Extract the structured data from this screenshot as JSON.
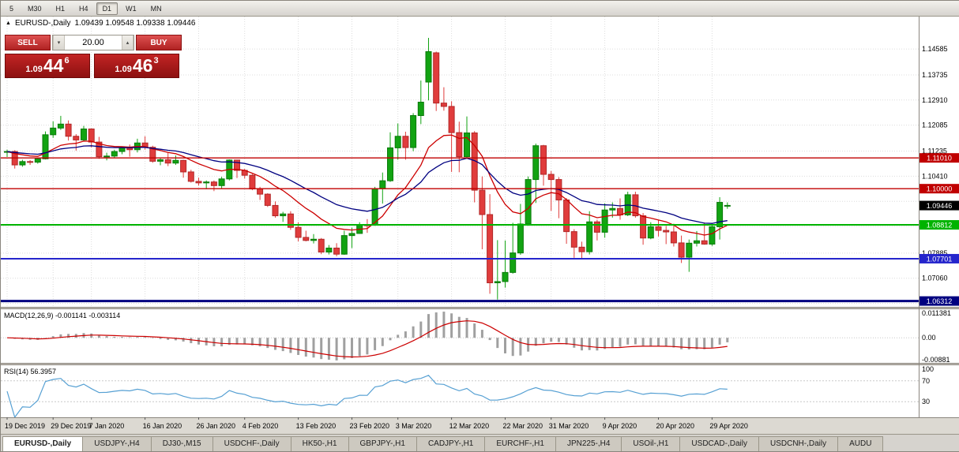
{
  "toolbar": {
    "timeframes": [
      "5",
      "M30",
      "H1",
      "H4",
      "D1",
      "W1",
      "MN"
    ],
    "active_timeframe": "D1"
  },
  "icons": {
    "symbol_marker": "▲",
    "volume_up": "▴",
    "volume_down": "▾"
  },
  "header": {
    "symbol": "EURUSD-,Daily",
    "ohlc": "1.09439 1.09548 1.09338 1.09446"
  },
  "trade_widget": {
    "sell_label": "SELL",
    "buy_label": "BUY",
    "volume": "20.00",
    "sell_price": {
      "prefix": "1.09",
      "big": "44",
      "sup": "6"
    },
    "buy_price": {
      "prefix": "1.09",
      "big": "46",
      "sup": "3"
    }
  },
  "indicators": {
    "macd": {
      "title": "MACD(12,26,9) -0.001141 -0.003114",
      "axis_labels": [
        "0.011381",
        "0.00",
        "-0.00881"
      ],
      "params": {
        "fast": 12,
        "slow": 26,
        "signal": 9
      }
    },
    "rsi": {
      "title": "RSI(14) 56.3957",
      "axis_labels": [
        "100",
        "70",
        "30"
      ],
      "levels": [
        70,
        30
      ],
      "period": 14
    }
  },
  "chart_data": {
    "type": "candlestick",
    "symbol": "EURUSD",
    "timeframe": "Daily",
    "price_range": [
      1.0612,
      1.1565
    ],
    "colors": {
      "up": "#12a312",
      "down": "#e03c3c",
      "up_border": "#0b7a0b",
      "down_border": "#b02828",
      "macd_bar": "#a0a0a0",
      "macd_signal": "#cc0000",
      "rsi_line": "#56a0d3",
      "grid": "#dcdcdc"
    },
    "gridlines": [
      {
        "value": 1.14585,
        "label": "1.14585"
      },
      {
        "value": 1.13735,
        "label": "1.13735"
      },
      {
        "value": 1.1291,
        "label": "1.12910"
      },
      {
        "value": 1.12085,
        "label": "1.12085"
      },
      {
        "value": 1.11235,
        "label": "1.11235"
      },
      {
        "value": 1.1041,
        "label": "1.10410"
      },
      {
        "value": 1.09585,
        "label": ""
      },
      {
        "value": 1.0876,
        "label": ""
      },
      {
        "value": 1.07885,
        "label": "1.07885"
      },
      {
        "value": 1.0706,
        "label": "1.07060"
      },
      {
        "value": 1.06235,
        "label": ""
      }
    ],
    "levels": [
      {
        "price": 1.1101,
        "label": "1.11010",
        "color": "#c00000",
        "width": 1.4
      },
      {
        "price": 1.1,
        "label": "1.10000",
        "color": "#c00000",
        "width": 1.4
      },
      {
        "price": 1.08812,
        "label": "1.08812",
        "color": "#00b300",
        "width": 2
      },
      {
        "price": 1.07701,
        "label": "1.07701",
        "color": "#2525cc",
        "width": 2
      },
      {
        "price": 1.06312,
        "label": "1.06312",
        "color": "#000080",
        "width": 3
      }
    ],
    "current_price": {
      "value": 1.09446,
      "label": "1.09446",
      "color": "#000000"
    },
    "moving_averages": [
      {
        "period": 12,
        "color": "#cc0000"
      },
      {
        "period": 26,
        "color": "#000080"
      }
    ],
    "date_labels": [
      {
        "i": 0,
        "label": "19 Dec 2019"
      },
      {
        "i": 6,
        "label": "29 Dec 2019"
      },
      {
        "i": 11,
        "label": "7 Jan 2020"
      },
      {
        "i": 18,
        "label": "16 Jan 2020"
      },
      {
        "i": 25,
        "label": "26 Jan 2020"
      },
      {
        "i": 31,
        "label": "4 Feb 2020"
      },
      {
        "i": 38,
        "label": "13 Feb 2020"
      },
      {
        "i": 45,
        "label": "23 Feb 2020"
      },
      {
        "i": 51,
        "label": "3 Mar 2020"
      },
      {
        "i": 58,
        "label": "12 Mar 2020"
      },
      {
        "i": 65,
        "label": "22 Mar 2020"
      },
      {
        "i": 71,
        "label": "31 Mar 2020"
      },
      {
        "i": 78,
        "label": "9 Apr 2020"
      },
      {
        "i": 85,
        "label": "20 Apr 2020"
      },
      {
        "i": 92,
        "label": "29 Apr 2020"
      }
    ],
    "candles": [
      [
        1.112,
        1.1128,
        1.1104,
        1.1122
      ],
      [
        1.1122,
        1.1126,
        1.1066,
        1.1078
      ],
      [
        1.1078,
        1.1095,
        1.1072,
        1.1089
      ],
      [
        1.1089,
        1.1094,
        1.1078,
        1.1087
      ],
      [
        1.1087,
        1.11,
        1.1082,
        1.1098
      ],
      [
        1.1098,
        1.1188,
        1.1096,
        1.1177
      ],
      [
        1.1177,
        1.1221,
        1.1167,
        1.1199
      ],
      [
        1.1199,
        1.1239,
        1.1193,
        1.1212
      ],
      [
        1.1212,
        1.1224,
        1.1158,
        1.1172
      ],
      [
        1.1172,
        1.1179,
        1.1125,
        1.116
      ],
      [
        1.116,
        1.1206,
        1.1155,
        1.1196
      ],
      [
        1.1196,
        1.1198,
        1.1135,
        1.1153
      ],
      [
        1.1153,
        1.117,
        1.1098,
        1.1105
      ],
      [
        1.1105,
        1.1118,
        1.1093,
        1.1107
      ],
      [
        1.1107,
        1.1128,
        1.11,
        1.1122
      ],
      [
        1.1122,
        1.1139,
        1.1113,
        1.1134
      ],
      [
        1.1134,
        1.1145,
        1.1105,
        1.1128
      ],
      [
        1.1128,
        1.1164,
        1.1119,
        1.115
      ],
      [
        1.115,
        1.1172,
        1.1128,
        1.1136
      ],
      [
        1.1136,
        1.1141,
        1.1085,
        1.109
      ],
      [
        1.109,
        1.1102,
        1.1077,
        1.1095
      ],
      [
        1.1095,
        1.1118,
        1.1074,
        1.1084
      ],
      [
        1.1084,
        1.1109,
        1.1078,
        1.1093
      ],
      [
        1.1093,
        1.1095,
        1.1036,
        1.1055
      ],
      [
        1.1055,
        1.1062,
        1.102,
        1.1024
      ],
      [
        1.1024,
        1.1036,
        1.101,
        1.1019
      ],
      [
        1.1019,
        1.1027,
        1.0998,
        1.1022
      ],
      [
        1.1022,
        1.1027,
        1.0992,
        1.101
      ],
      [
        1.101,
        1.1039,
        1.1001,
        1.1032
      ],
      [
        1.1032,
        1.1096,
        1.1027,
        1.1094
      ],
      [
        1.1094,
        1.1095,
        1.1035,
        1.106
      ],
      [
        1.106,
        1.1065,
        1.1033,
        1.1044
      ],
      [
        1.1044,
        1.1048,
        1.0995,
        1.0999
      ],
      [
        1.0999,
        1.1006,
        1.0963,
        1.0982
      ],
      [
        1.0982,
        1.0985,
        1.094,
        1.0945
      ],
      [
        1.0945,
        1.0958,
        1.0905,
        1.0911
      ],
      [
        1.0911,
        1.0924,
        1.0891,
        1.0917
      ],
      [
        1.0917,
        1.0926,
        1.0865,
        1.0873
      ],
      [
        1.0873,
        1.089,
        1.0827,
        1.084
      ],
      [
        1.084,
        1.0862,
        1.0827,
        1.083
      ],
      [
        1.083,
        1.0851,
        1.082,
        1.0834
      ],
      [
        1.0834,
        1.0838,
        1.0785,
        1.0792
      ],
      [
        1.0792,
        1.0815,
        1.0784,
        1.0805
      ],
      [
        1.0805,
        1.0821,
        1.0778,
        1.0785
      ],
      [
        1.0785,
        1.0862,
        1.0783,
        1.0846
      ],
      [
        1.0846,
        1.0872,
        1.0805,
        1.0853
      ],
      [
        1.0853,
        1.089,
        1.0852,
        1.0881
      ],
      [
        1.0881,
        1.09,
        1.0855,
        1.088
      ],
      [
        1.088,
        1.1006,
        1.0878,
        1.1
      ],
      [
        1.1,
        1.1053,
        1.0951,
        1.1026
      ],
      [
        1.1026,
        1.1185,
        1.1022,
        1.1134
      ],
      [
        1.1134,
        1.1214,
        1.1095,
        1.1172
      ],
      [
        1.1172,
        1.1187,
        1.1095,
        1.1135
      ],
      [
        1.1135,
        1.1248,
        1.1123,
        1.124
      ],
      [
        1.124,
        1.1355,
        1.1212,
        1.1284
      ],
      [
        1.135,
        1.1495,
        1.129,
        1.145
      ],
      [
        1.1446,
        1.145,
        1.1255,
        1.1281
      ],
      [
        1.1281,
        1.1333,
        1.1256,
        1.127
      ],
      [
        1.127,
        1.1287,
        1.1055,
        1.1184
      ],
      [
        1.1184,
        1.122,
        1.1054,
        1.1105
      ],
      [
        1.1105,
        1.1237,
        1.11,
        1.1183
      ],
      [
        1.1183,
        1.1189,
        1.0955,
        1.0995
      ],
      [
        1.0995,
        1.104,
        1.0801,
        1.0915
      ],
      [
        1.0915,
        1.0982,
        1.0655,
        1.0691
      ],
      [
        1.0691,
        1.0831,
        1.0636,
        1.0695
      ],
      [
        1.0695,
        1.083,
        1.0675,
        1.0725
      ],
      [
        1.0725,
        1.0888,
        1.0721,
        1.0789
      ],
      [
        1.0789,
        1.095,
        1.0783,
        1.0884
      ],
      [
        1.0884,
        1.104,
        1.0878,
        1.103
      ],
      [
        1.103,
        1.1148,
        1.0953,
        1.1141
      ],
      [
        1.1141,
        1.1144,
        1.101,
        1.1047
      ],
      [
        1.1047,
        1.1058,
        1.0927,
        1.103
      ],
      [
        1.103,
        1.1038,
        1.0903,
        1.0963
      ],
      [
        1.0963,
        1.0969,
        1.0819,
        1.0859
      ],
      [
        1.0859,
        1.0867,
        1.0773,
        1.0808
      ],
      [
        1.0808,
        1.0826,
        1.0769,
        1.0793
      ],
      [
        1.0793,
        1.0926,
        1.0784,
        1.0891
      ],
      [
        1.0891,
        1.0898,
        1.083,
        1.0857
      ],
      [
        1.0857,
        1.0952,
        1.0839,
        1.093
      ],
      [
        1.093,
        1.0955,
        1.0905,
        1.0935
      ],
      [
        1.0935,
        1.0968,
        1.0898,
        1.0914
      ],
      [
        1.0914,
        1.099,
        1.091,
        1.098
      ],
      [
        1.098,
        1.099,
        1.0905,
        1.0911
      ],
      [
        1.0911,
        1.092,
        1.0816,
        1.0838
      ],
      [
        1.0838,
        1.089,
        1.0834,
        1.0875
      ],
      [
        1.0875,
        1.0897,
        1.0843,
        1.0863
      ],
      [
        1.0863,
        1.0878,
        1.0818,
        1.0858
      ],
      [
        1.0858,
        1.0885,
        1.081,
        1.0822
      ],
      [
        1.0822,
        1.0846,
        1.0756,
        1.0775
      ],
      [
        1.0775,
        1.0833,
        1.0727,
        1.0821
      ],
      [
        1.0821,
        1.0861,
        1.081,
        1.0829
      ],
      [
        1.0829,
        1.0889,
        1.0816,
        1.0818
      ],
      [
        1.0818,
        1.0885,
        1.0812,
        1.0875
      ],
      [
        1.0875,
        1.0972,
        1.0833,
        1.0955
      ],
      [
        1.0944,
        1.0955,
        1.0934,
        1.0945
      ]
    ]
  },
  "tabs": {
    "active": "EURUSD-,Daily",
    "items": [
      "EURUSD-,Daily",
      "USDJPY-,H4",
      "DJ30-,M15",
      "USDCHF-,Daily",
      "HK50-,H1",
      "GBPJPY-,H1",
      "CADJPY-,H1",
      "EURCHF-,H1",
      "JPN225-,H4",
      "USOil-,H1",
      "USDCAD-,Daily",
      "USDCNH-,Daily",
      "AUDU"
    ]
  }
}
